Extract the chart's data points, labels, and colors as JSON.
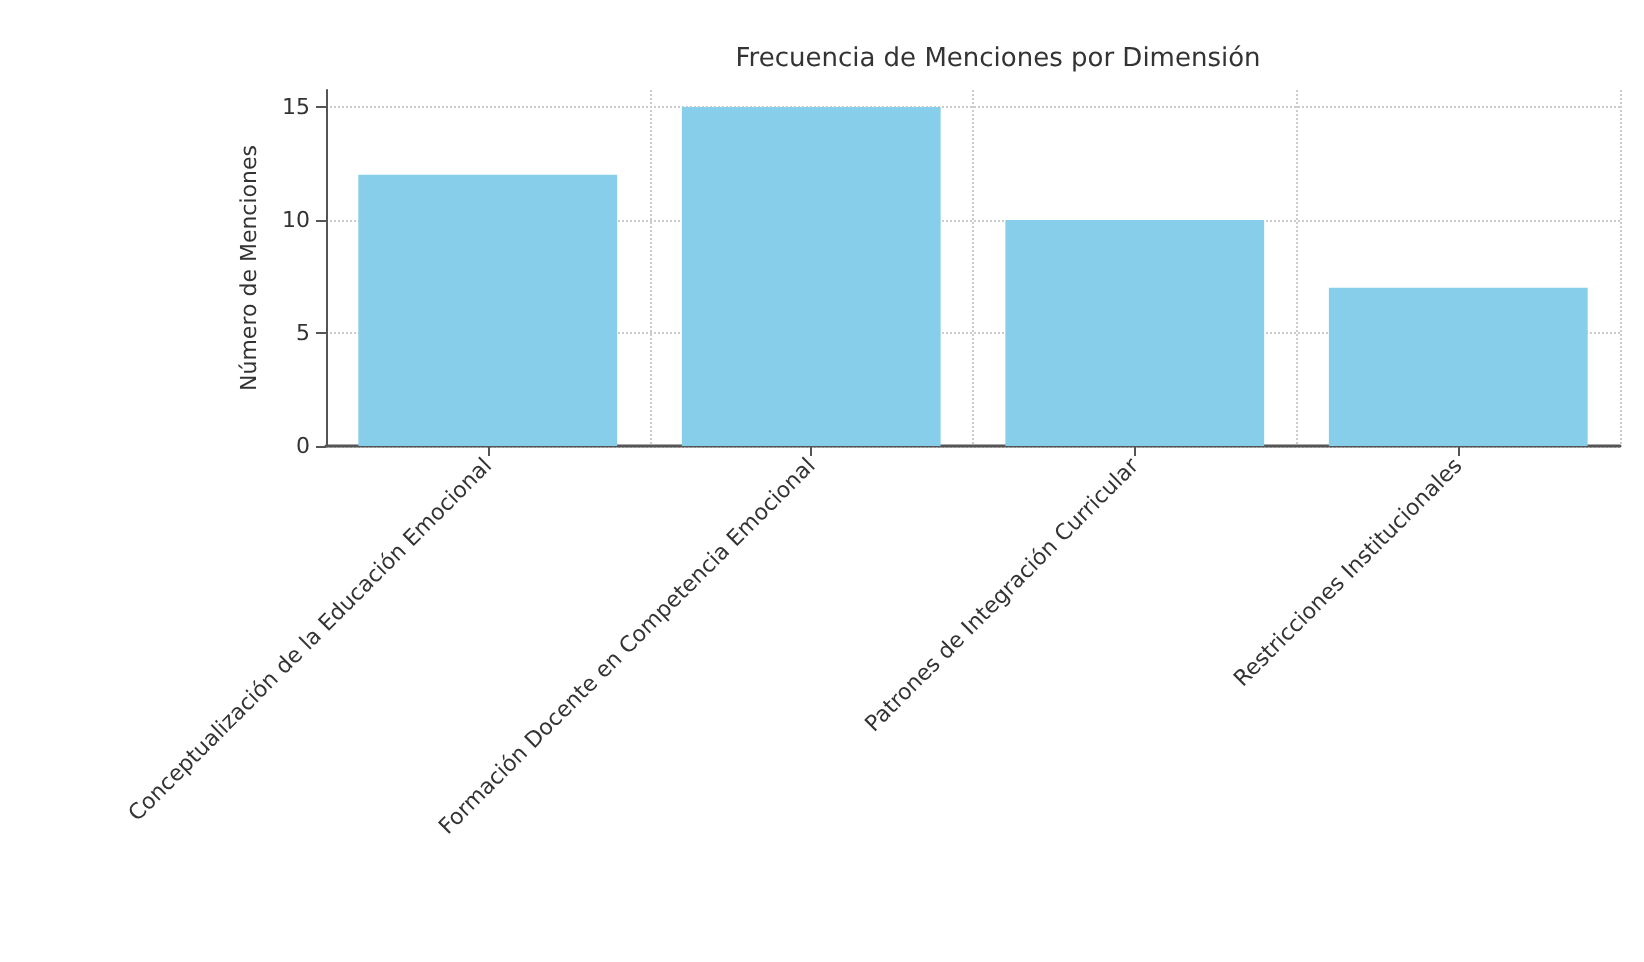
{
  "chart_data": {
    "type": "bar",
    "title": "Frecuencia de Menciones por Dimensión",
    "ylabel": "Número de Menciones",
    "categories": [
      "Conceptualización de la Educación Emocional",
      "Formación Docente en Competencia Emocional",
      "Patrones de Integración Curricular",
      "Restricciones Institucionales"
    ],
    "values": [
      12,
      15,
      10,
      7
    ],
    "color": "#87ceeb",
    "ylim": [
      0,
      15.75
    ],
    "yticks": [
      0,
      5,
      10,
      15
    ],
    "grid": true
  }
}
